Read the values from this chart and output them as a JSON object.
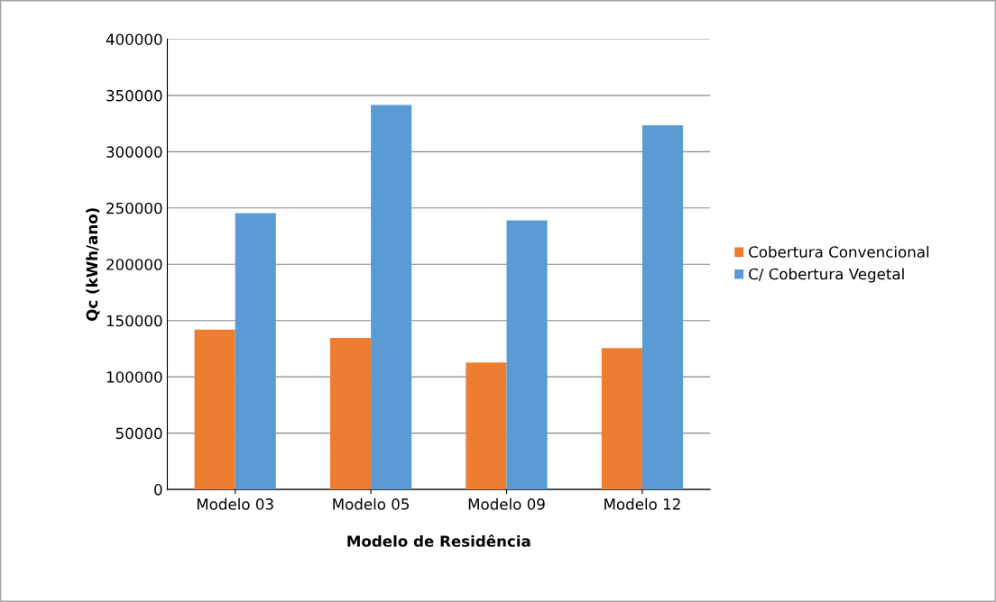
{
  "chart_data": {
    "type": "bar",
    "xlabel": "Modelo de Residência",
    "ylabel": "Qc (kWh/ano)",
    "categories": [
      "Modelo 03",
      "Modelo 05",
      "Modelo 09",
      "Modelo 12"
    ],
    "series": [
      {
        "name": "Cobertura Convencional",
        "color": "#ed7d31",
        "values": [
          142000,
          134500,
          112800,
          125500
        ]
      },
      {
        "name": "C/ Cobertura Vegetal",
        "color": "#5b9bd5",
        "values": [
          245500,
          341500,
          239000,
          323500
        ]
      }
    ],
    "ylim": [
      0,
      400000
    ],
    "yticks": [
      0,
      50000,
      100000,
      150000,
      200000,
      250000,
      300000,
      350000,
      400000
    ],
    "grid": "y",
    "legend": "right"
  }
}
